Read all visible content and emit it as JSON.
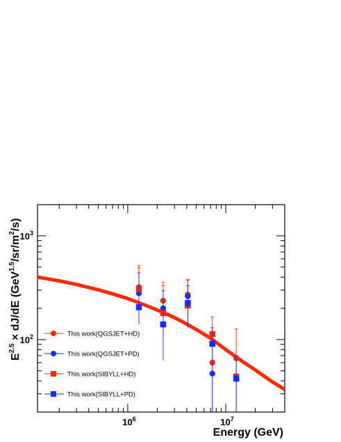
{
  "chart_data": {
    "type": "scatter",
    "x_scale": "log",
    "y_scale": "log",
    "xlim": [
      120000,
      40000000
    ],
    "ylim": [
      20,
      2000
    ],
    "grid": false,
    "legend_placement": "bottom-left",
    "xlabel": "Energy (GeV)",
    "ylabel_parts": {
      "a": "E",
      "a_sup": "2.5",
      "b": " × dJ/dE (GeV",
      "b_sup": "1.5",
      "c": "/sr/m",
      "c_sup": "2",
      "d": "/s)"
    },
    "x_ticks": [
      {
        "value": 1000000,
        "base": "10",
        "exp": "6"
      },
      {
        "value": 10000000,
        "base": "10",
        "exp": "7"
      }
    ],
    "y_ticks": [
      {
        "value": 100,
        "base": "10",
        "exp": "2"
      },
      {
        "value": 1000,
        "base": "10",
        "exp": "3"
      }
    ],
    "fit_curve": {
      "color": "#ff2a00",
      "points": [
        [
          120000,
          400
        ],
        [
          200000,
          368
        ],
        [
          300000,
          340
        ],
        [
          500000,
          302
        ],
        [
          700000,
          276
        ],
        [
          1000000,
          249
        ],
        [
          1500000,
          215
        ],
        [
          2000000,
          193
        ],
        [
          3000000,
          163
        ],
        [
          4000000,
          141
        ],
        [
          5000000,
          125
        ],
        [
          7000000,
          103
        ],
        [
          10000000,
          80
        ],
        [
          15000000,
          61
        ],
        [
          20000000,
          51
        ],
        [
          30000000,
          39
        ],
        [
          40000000,
          33
        ]
      ]
    },
    "series": [
      {
        "name": "This work(QGSJET+HD)",
        "marker": "circle",
        "color": "#ff2a00",
        "points": [
          {
            "x": 1300000,
            "y": 320,
            "lo": 175,
            "hi": 515
          },
          {
            "x": 2300000,
            "y": 237,
            "lo": 145,
            "hi": 355
          },
          {
            "x": 4100000,
            "y": 271,
            "lo": 175,
            "hi": 380
          },
          {
            "x": 7300000,
            "y": 60
          },
          {
            "x": 12800000,
            "y": 66
          }
        ]
      },
      {
        "name": "This work(QGSJET+PD)",
        "marker": "circle",
        "color": "#1a2bff",
        "points": [
          {
            "x": 1300000,
            "y": 280
          },
          {
            "x": 2300000,
            "y": 200
          },
          {
            "x": 4100000,
            "y": 262
          },
          {
            "x": 7300000,
            "y": 47
          }
        ]
      },
      {
        "name": "This work(SIBYLL+HD)",
        "marker": "square",
        "color": "#ff2a00",
        "points": [
          {
            "x": 1300000,
            "y": 307,
            "lo": 150,
            "hi": 490
          },
          {
            "x": 2300000,
            "y": 180,
            "lo": 105,
            "hi": 330
          },
          {
            "x": 4100000,
            "y": 213,
            "lo": 130,
            "hi": 370
          },
          {
            "x": 7300000,
            "y": 113,
            "lo": 20,
            "hi": 165
          },
          {
            "x": 12800000,
            "y": 44,
            "lo": 20,
            "hi": 127
          }
        ]
      },
      {
        "name": "This work(SIBYLL+PD)",
        "marker": "square",
        "color": "#1a2bff",
        "points": [
          {
            "x": 1300000,
            "y": 205,
            "lo": 140,
            "hi": 440
          },
          {
            "x": 2300000,
            "y": 140,
            "lo": 63,
            "hi": 295
          },
          {
            "x": 4100000,
            "y": 225,
            "lo": 130,
            "hi": 330
          },
          {
            "x": 7300000,
            "y": 91,
            "lo": 20,
            "hi": 130
          },
          {
            "x": 12800000,
            "y": 42,
            "lo": 20,
            "hi": 70
          }
        ]
      }
    ]
  }
}
